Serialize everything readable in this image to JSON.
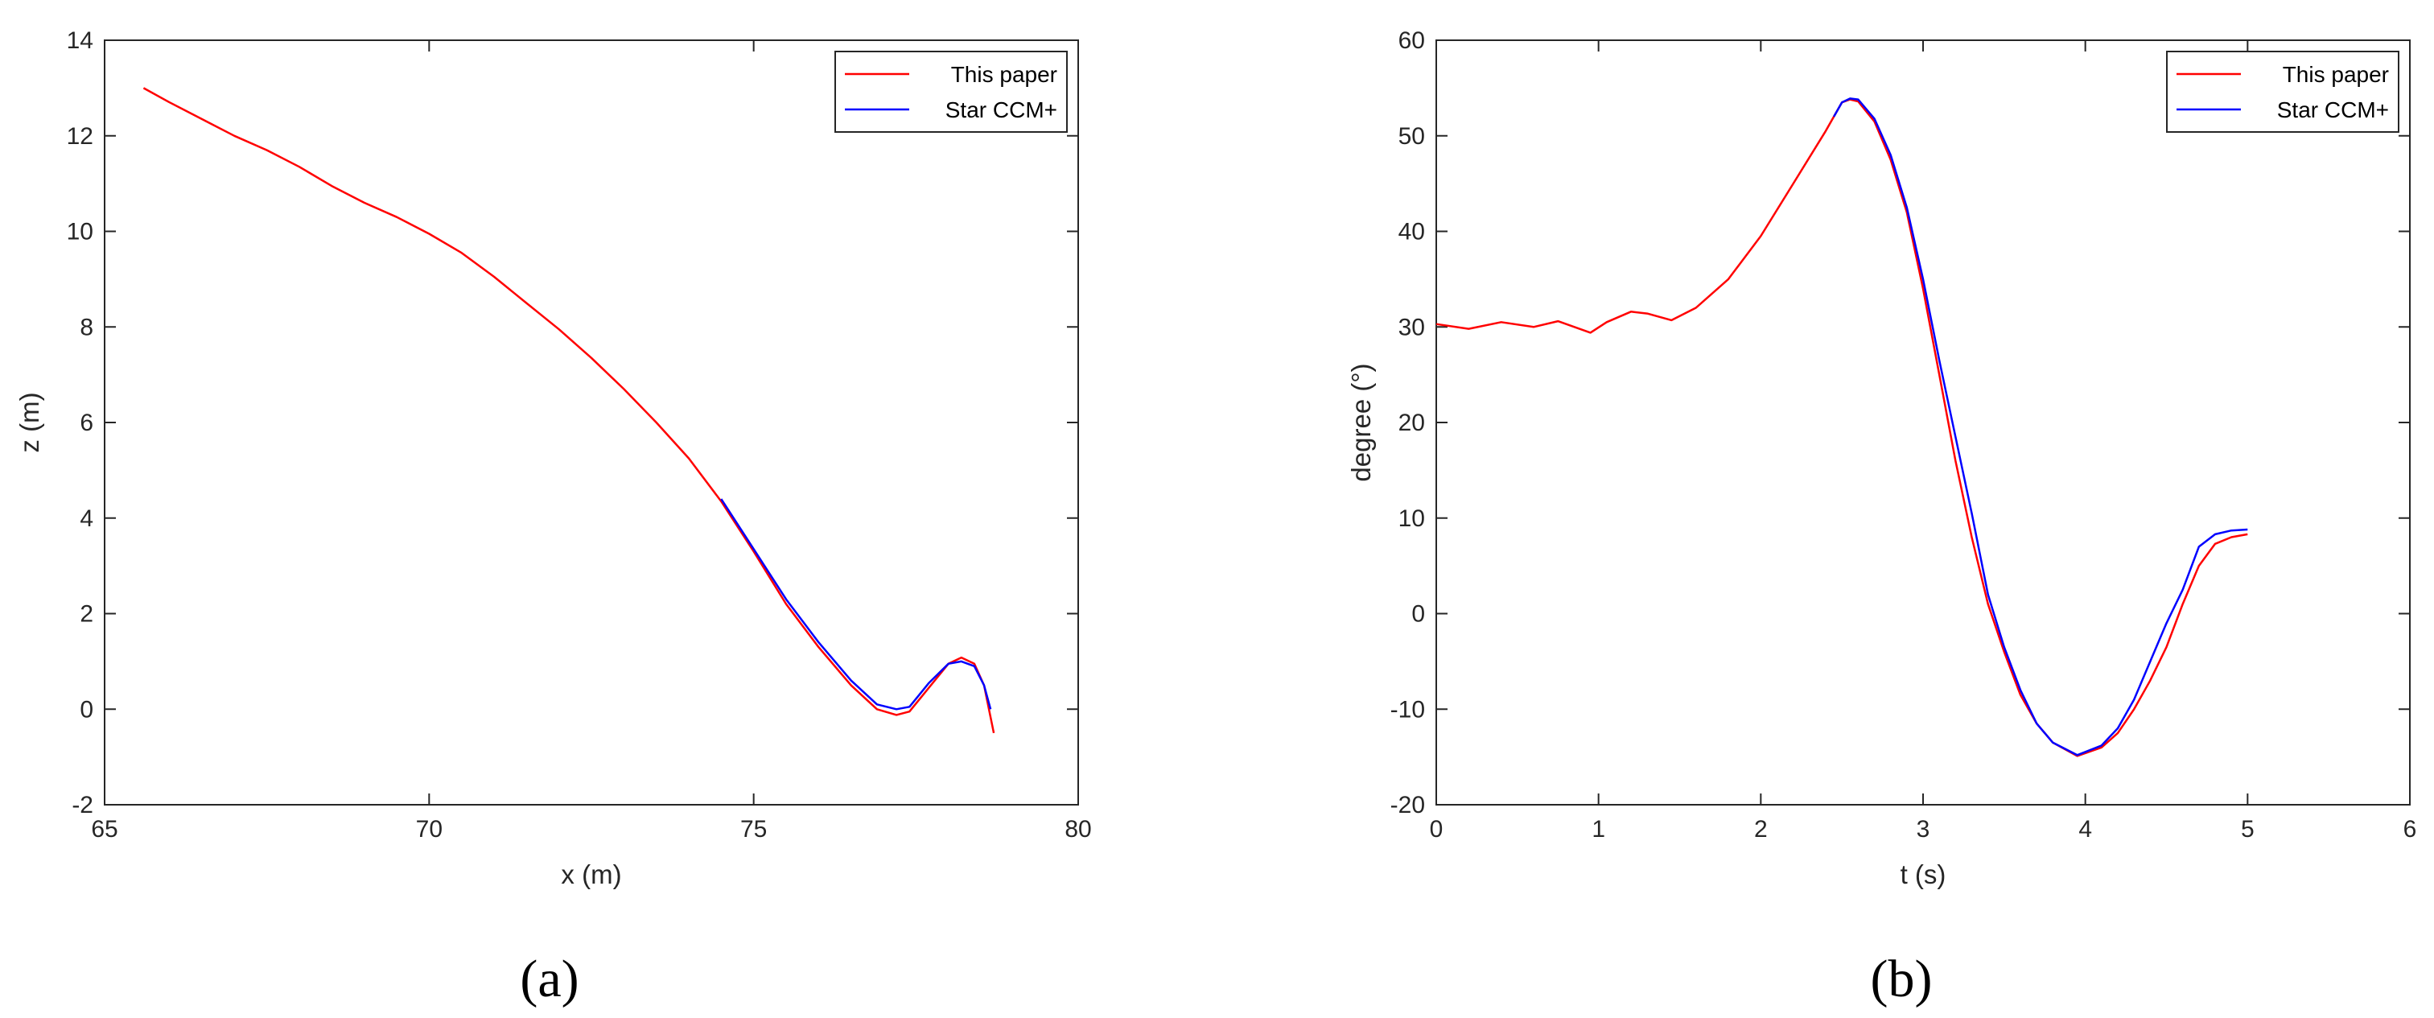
{
  "figure": {
    "panels": [
      {
        "caption": "(a)"
      },
      {
        "caption": "(b)"
      }
    ]
  },
  "chart_data": [
    {
      "type": "line",
      "title": "",
      "xlabel": "x (m)",
      "ylabel": "z (m)",
      "xlim": [
        65,
        80
      ],
      "ylim": [
        -2,
        14
      ],
      "xticks": [
        "65",
        "70",
        "75",
        "80"
      ],
      "yticks": [
        "-2",
        "0",
        "2",
        "4",
        "6",
        "8",
        "10",
        "12",
        "14"
      ],
      "grid": false,
      "legend_position": "top-right",
      "series": [
        {
          "name": "This paper",
          "color": "#ff0000",
          "points": [
            [
              65.6,
              13.0
            ],
            [
              66.0,
              12.7
            ],
            [
              66.5,
              12.35
            ],
            [
              67.0,
              12.0
            ],
            [
              67.5,
              11.7
            ],
            [
              68.0,
              11.35
            ],
            [
              68.5,
              10.95
            ],
            [
              69.0,
              10.6
            ],
            [
              69.5,
              10.3
            ],
            [
              70.0,
              9.95
            ],
            [
              70.5,
              9.55
            ],
            [
              71.0,
              9.05
            ],
            [
              71.5,
              8.5
            ],
            [
              72.0,
              7.95
            ],
            [
              72.5,
              7.35
            ],
            [
              73.0,
              6.7
            ],
            [
              73.5,
              6.0
            ],
            [
              74.0,
              5.25
            ],
            [
              74.5,
              4.35
            ],
            [
              75.0,
              3.3
            ],
            [
              75.5,
              2.2
            ],
            [
              76.0,
              1.3
            ],
            [
              76.5,
              0.5
            ],
            [
              76.9,
              0.0
            ],
            [
              77.2,
              -0.12
            ],
            [
              77.4,
              -0.05
            ],
            [
              77.7,
              0.45
            ],
            [
              78.0,
              0.95
            ],
            [
              78.2,
              1.08
            ],
            [
              78.4,
              0.95
            ],
            [
              78.55,
              0.5
            ],
            [
              78.7,
              -0.5
            ]
          ]
        },
        {
          "name": "Star CCM+",
          "color": "#0000ff",
          "points": [
            [
              74.5,
              4.4
            ],
            [
              75.0,
              3.35
            ],
            [
              75.5,
              2.3
            ],
            [
              76.0,
              1.4
            ],
            [
              76.5,
              0.6
            ],
            [
              76.9,
              0.1
            ],
            [
              77.2,
              0.0
            ],
            [
              77.4,
              0.05
            ],
            [
              77.7,
              0.55
            ],
            [
              78.0,
              0.95
            ],
            [
              78.2,
              1.0
            ],
            [
              78.4,
              0.9
            ],
            [
              78.55,
              0.5
            ],
            [
              78.65,
              0.0
            ]
          ]
        }
      ]
    },
    {
      "type": "line",
      "title": "",
      "xlabel": "t (s)",
      "ylabel": "degree (°)",
      "xlim": [
        0,
        6
      ],
      "ylim": [
        -20,
        60
      ],
      "xticks": [
        "0",
        "1",
        "2",
        "3",
        "4",
        "5",
        "6"
      ],
      "yticks": [
        "-20",
        "-10",
        "0",
        "10",
        "20",
        "30",
        "40",
        "50",
        "60"
      ],
      "grid": false,
      "legend_position": "top-right",
      "series": [
        {
          "name": "This paper",
          "color": "#ff0000",
          "points": [
            [
              0.0,
              30.3
            ],
            [
              0.2,
              29.8
            ],
            [
              0.4,
              30.5
            ],
            [
              0.6,
              30.0
            ],
            [
              0.75,
              30.6
            ],
            [
              0.95,
              29.4
            ],
            [
              1.05,
              30.5
            ],
            [
              1.2,
              31.6
            ],
            [
              1.3,
              31.4
            ],
            [
              1.45,
              30.7
            ],
            [
              1.6,
              32.0
            ],
            [
              1.8,
              35.0
            ],
            [
              2.0,
              39.5
            ],
            [
              2.2,
              45.0
            ],
            [
              2.4,
              50.5
            ],
            [
              2.5,
              53.5
            ],
            [
              2.55,
              53.8
            ],
            [
              2.6,
              53.6
            ],
            [
              2.7,
              51.5
            ],
            [
              2.8,
              47.5
            ],
            [
              2.9,
              42.0
            ],
            [
              3.0,
              34.0
            ],
            [
              3.1,
              25.0
            ],
            [
              3.2,
              16.0
            ],
            [
              3.3,
              8.0
            ],
            [
              3.4,
              1.0
            ],
            [
              3.5,
              -4.0
            ],
            [
              3.6,
              -8.5
            ],
            [
              3.7,
              -11.5
            ],
            [
              3.8,
              -13.5
            ],
            [
              3.95,
              -14.9
            ],
            [
              4.1,
              -14.0
            ],
            [
              4.2,
              -12.5
            ],
            [
              4.3,
              -10.0
            ],
            [
              4.4,
              -7.0
            ],
            [
              4.5,
              -3.5
            ],
            [
              4.6,
              1.0
            ],
            [
              4.7,
              5.0
            ],
            [
              4.8,
              7.3
            ],
            [
              4.9,
              8.0
            ],
            [
              5.0,
              8.3
            ]
          ]
        },
        {
          "name": "Star CCM+",
          "color": "#0000ff",
          "points": [
            [
              2.45,
              52.0
            ],
            [
              2.5,
              53.5
            ],
            [
              2.55,
              53.9
            ],
            [
              2.6,
              53.8
            ],
            [
              2.7,
              51.8
            ],
            [
              2.8,
              48.0
            ],
            [
              2.9,
              42.5
            ],
            [
              3.0,
              35.0
            ],
            [
              3.1,
              26.5
            ],
            [
              3.2,
              18.5
            ],
            [
              3.3,
              10.5
            ],
            [
              3.4,
              2.0
            ],
            [
              3.5,
              -3.5
            ],
            [
              3.6,
              -8.0
            ],
            [
              3.7,
              -11.5
            ],
            [
              3.8,
              -13.5
            ],
            [
              3.95,
              -14.8
            ],
            [
              4.1,
              -13.8
            ],
            [
              4.2,
              -12.0
            ],
            [
              4.3,
              -9.0
            ],
            [
              4.45,
              -3.0
            ],
            [
              4.5,
              -1.0
            ],
            [
              4.6,
              2.5
            ],
            [
              4.7,
              7.0
            ],
            [
              4.8,
              8.3
            ],
            [
              4.9,
              8.7
            ],
            [
              5.0,
              8.8
            ]
          ]
        }
      ]
    }
  ]
}
